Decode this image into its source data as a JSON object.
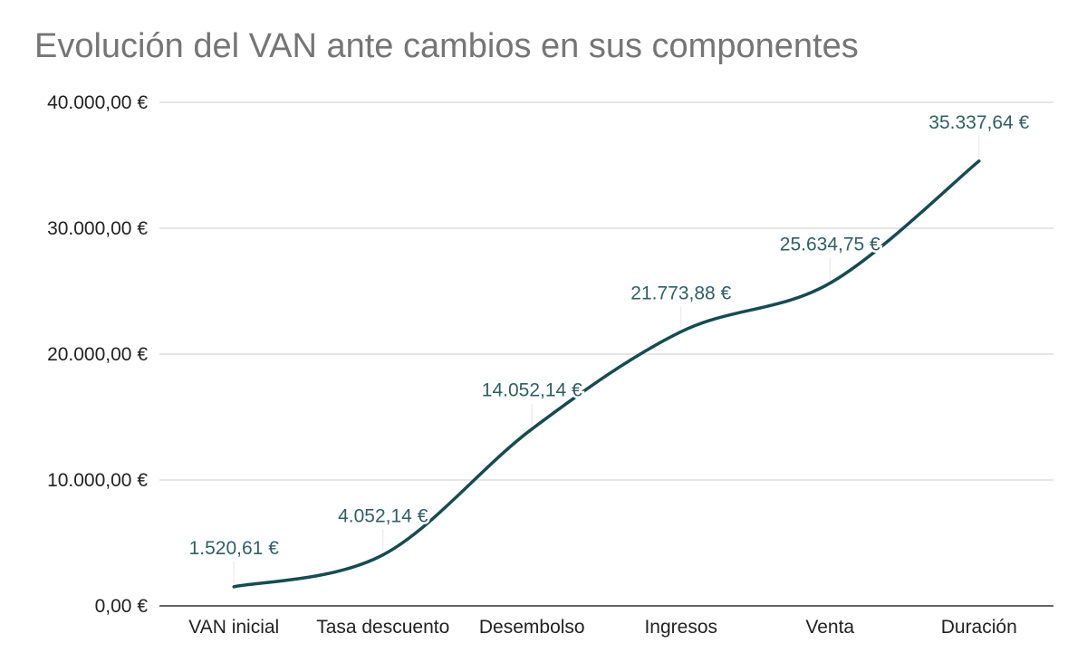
{
  "chart_data": {
    "type": "line",
    "title": "Evolución del VAN ante cambios en sus componentes",
    "xlabel": "",
    "ylabel": "",
    "categories": [
      "VAN inicial",
      "Tasa descuento",
      "Desembolso",
      "Ingresos",
      "Venta",
      "Duración"
    ],
    "series": [
      {
        "values": [
          1520.61,
          4052.14,
          14052.14,
          21773.88,
          25634.75,
          35337.64
        ],
        "value_labels": [
          "1.520,61 €",
          "4.052,14 €",
          "14.052,14 €",
          "21.773,88 €",
          "25.634,75 €",
          "35.337,64 €"
        ]
      }
    ],
    "ylim": [
      0,
      40000
    ],
    "y_ticks": [
      0,
      10000,
      20000,
      30000,
      40000
    ],
    "y_tick_labels": [
      "0,00 €",
      "10.000,00 €",
      "20.000,00 €",
      "30.000,00 €",
      "40.000,00 €"
    ],
    "grid": true,
    "smooth": true,
    "legend": "none",
    "colors": {
      "line": "#174b52",
      "label": "#2f5f65",
      "title": "#757575",
      "grid": "#cccccc",
      "axis": "#333333",
      "leader": "#e6e6e6"
    }
  }
}
